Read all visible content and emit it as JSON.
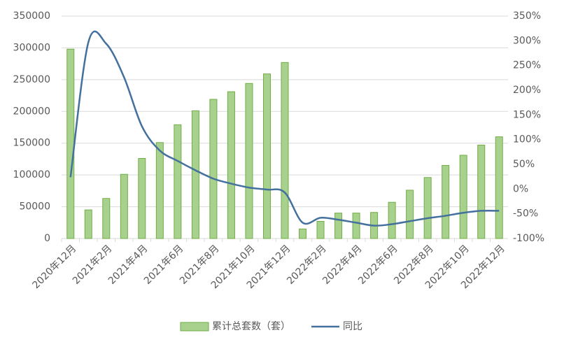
{
  "chart_data": {
    "type": "bar-line",
    "categories": [
      "2020年12月",
      null,
      "2021年2月",
      null,
      "2021年4月",
      null,
      "2021年6月",
      null,
      "2021年8月",
      null,
      "2021年10月",
      null,
      "2021年12月",
      null,
      "2022年2月",
      null,
      "2022年4月",
      null,
      "2022年6月",
      null,
      "2022年8月",
      null,
      "2022年10月",
      null,
      "2022年12月"
    ],
    "series": [
      {
        "name": "累计总套数（套）",
        "type": "bar",
        "color": "#a9d18e",
        "border_color": "#70ad47",
        "values": [
          298000,
          45000,
          63000,
          101000,
          126000,
          151000,
          179000,
          201000,
          219000,
          231000,
          244000,
          259000,
          277000,
          15000,
          27000,
          40000,
          40000,
          41000,
          57000,
          76000,
          96000,
          115000,
          131000,
          147000,
          160000
        ]
      },
      {
        "name": "同比",
        "type": "line",
        "axis": "y2",
        "color": "#44709e",
        "values": [
          24,
          297,
          294,
          226,
          127,
          78,
          57,
          38,
          21,
          11,
          3,
          -1,
          -7,
          -68,
          -58,
          -62,
          -68,
          -74,
          -71,
          -65,
          -59,
          -54,
          -48,
          -44,
          -44
        ]
      }
    ],
    "ylim": [
      0,
      350000
    ],
    "yticks": [
      0,
      50000,
      100000,
      150000,
      200000,
      250000,
      300000,
      350000
    ],
    "y2lim": [
      -100,
      350
    ],
    "y2ticks": [
      {
        "value": -100,
        "label": "-100%"
      },
      {
        "value": -50,
        "label": "-50%"
      },
      {
        "value": 0,
        "label": "0%"
      },
      {
        "value": 50,
        "label": "50%"
      },
      {
        "value": 100,
        "label": "100%"
      },
      {
        "value": 150,
        "label": "150%"
      },
      {
        "value": 200,
        "label": "200%"
      },
      {
        "value": 250,
        "label": "250%"
      },
      {
        "value": 300,
        "label": "300%"
      },
      {
        "value": 350,
        "label": "350%"
      }
    ],
    "grid": true,
    "legend": "bottom"
  }
}
